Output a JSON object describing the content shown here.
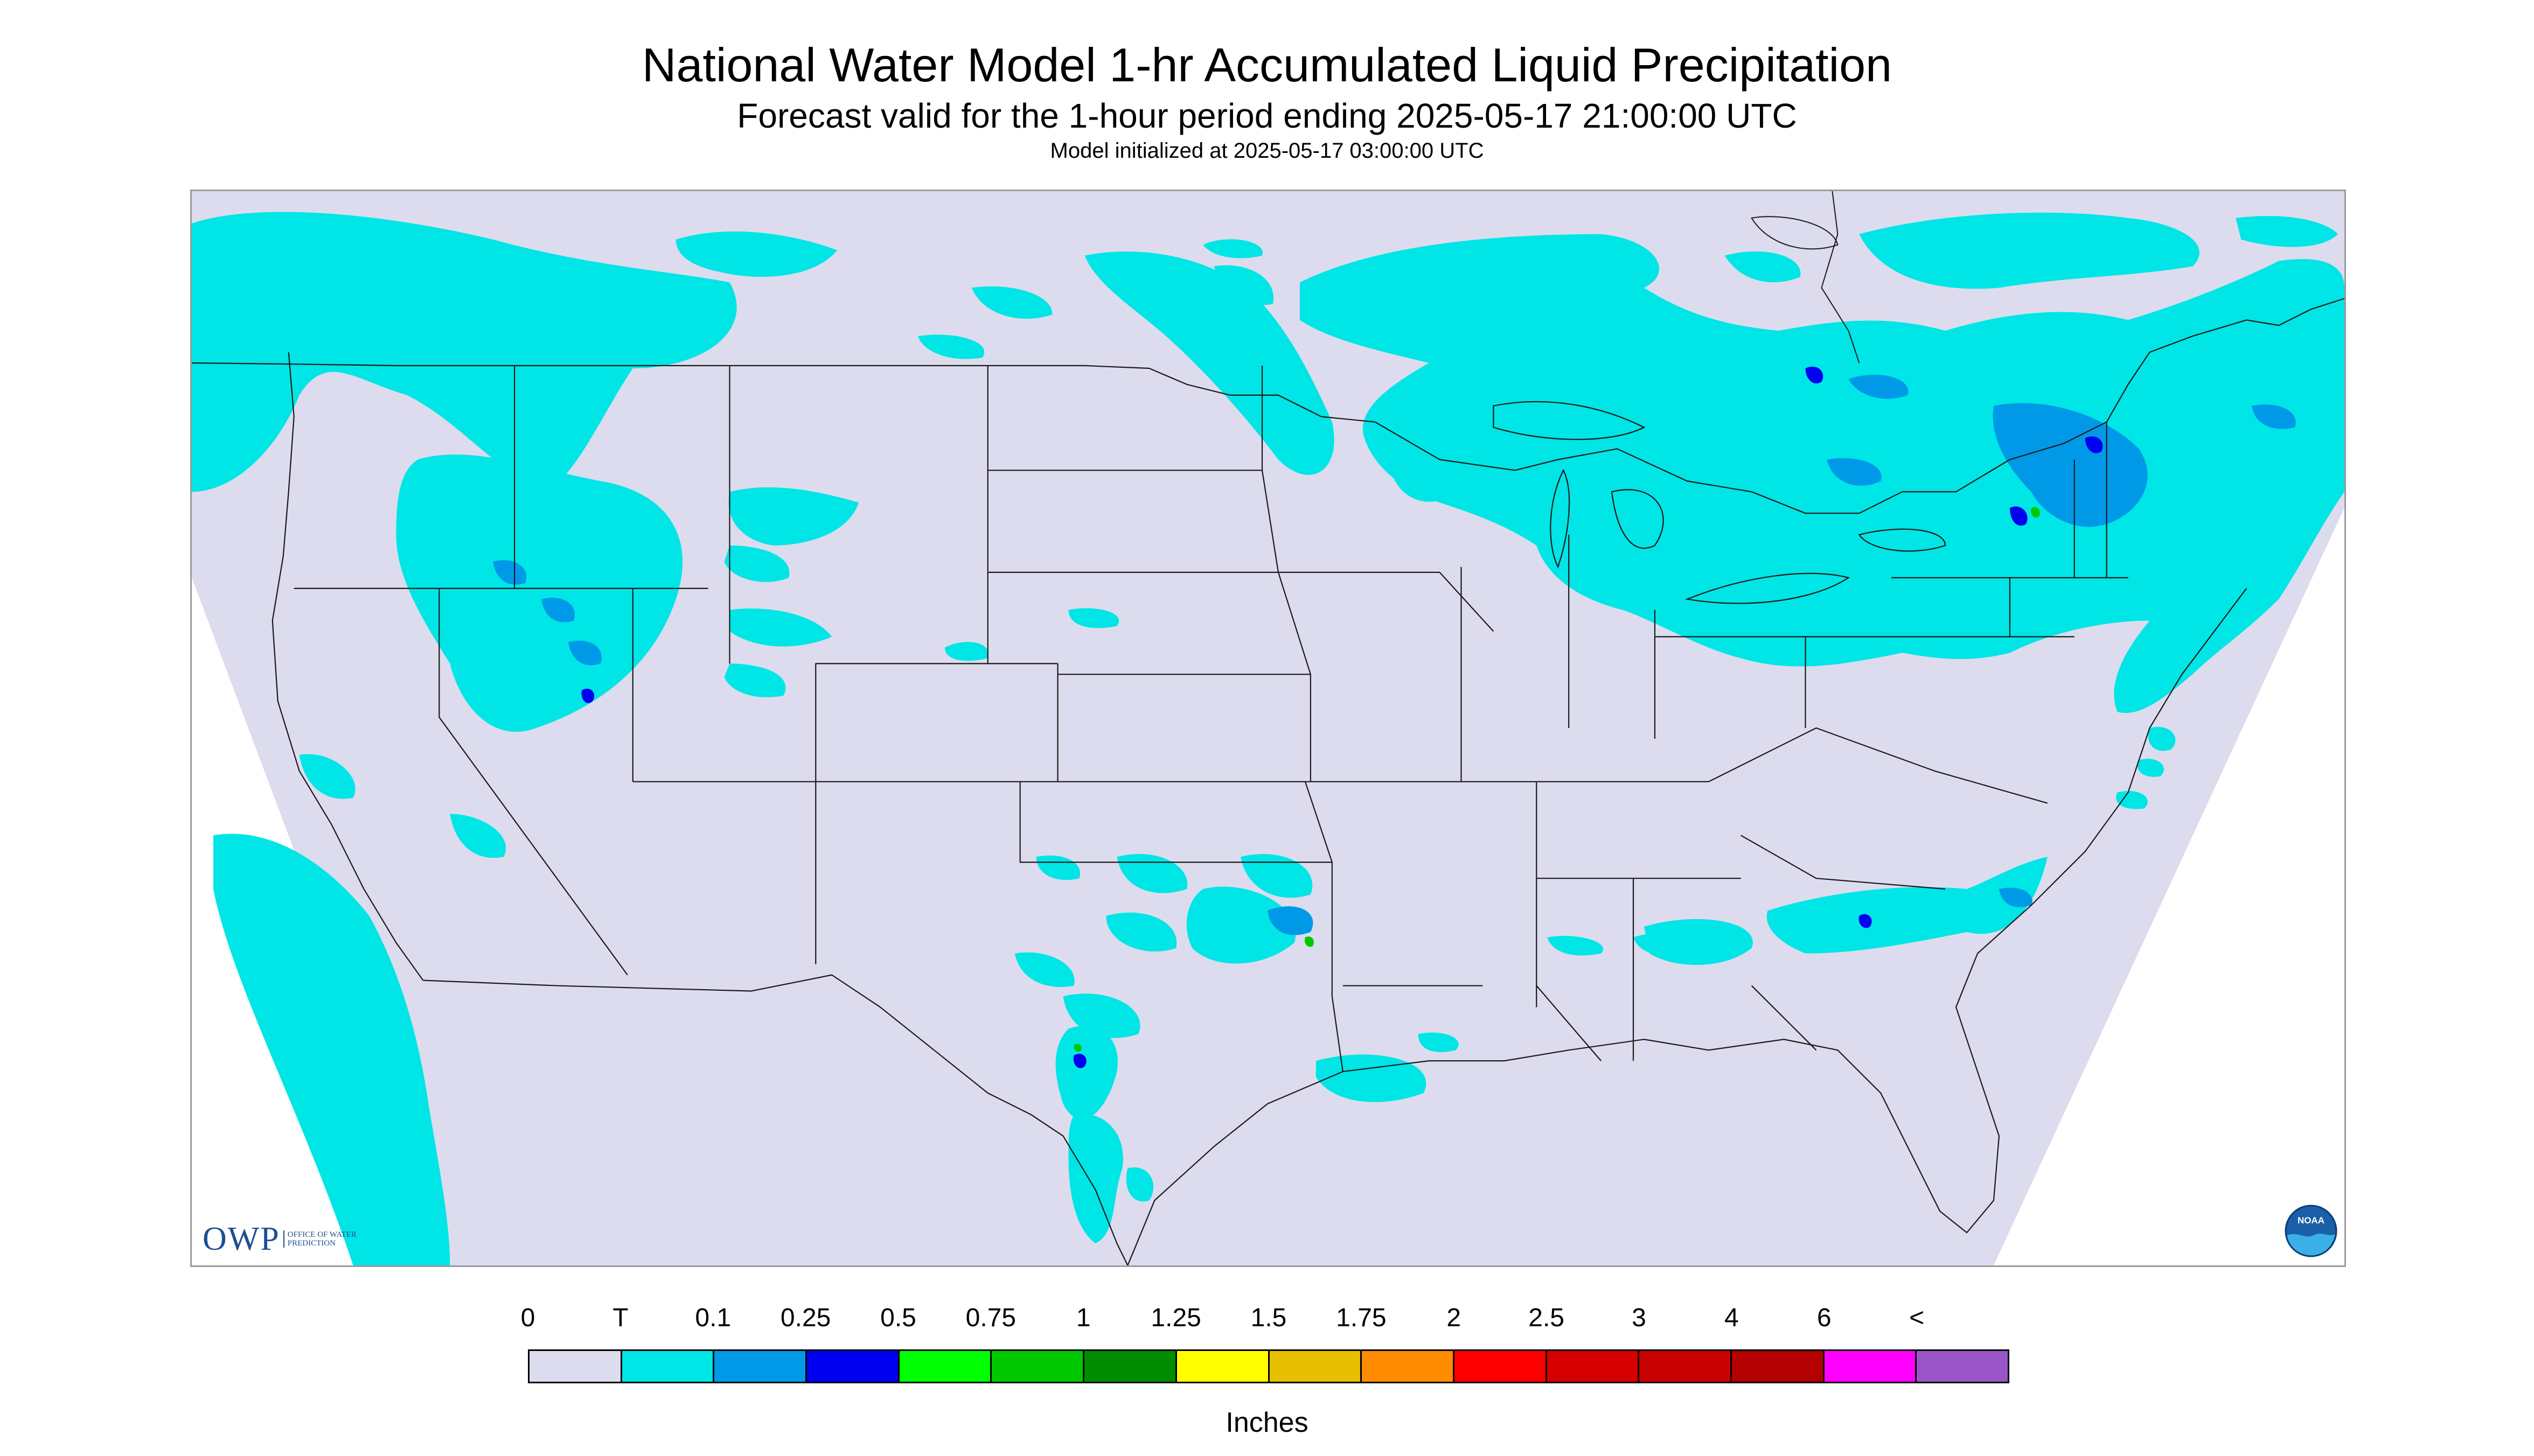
{
  "title": "National Water Model 1-hr Accumulated Liquid Precipitation",
  "subtitle": "Forecast valid for the 1-hour period ending 2025-05-17 21:00:00 UTC",
  "init_line": "Model initialized at 2025-05-17 03:00:00 UTC",
  "legend": {
    "labels": [
      "0",
      "T",
      "0.1",
      "0.25",
      "0.5",
      "0.75",
      "1",
      "1.25",
      "1.5",
      "1.75",
      "2",
      "2.5",
      "3",
      "4",
      "6",
      "<"
    ],
    "colors": [
      "#dcdcee",
      "#00e5e5",
      "#0099e8",
      "#0000f0",
      "#00ff00",
      "#00c800",
      "#008c00",
      "#ffff00",
      "#e5bf00",
      "#ff8c00",
      "#ff0000",
      "#d70000",
      "#c80000",
      "#b40000",
      "#ff00ff",
      "#9955c8"
    ],
    "units": "Inches"
  },
  "logos": {
    "owp_mark": "OWP",
    "owp_text": "Office of Water Prediction",
    "noaa_text": "NOAA"
  },
  "colors": {
    "background_outside": "#ffffff",
    "no_precip": "#dcdcee",
    "trace": "#00e5e5",
    "light": "#0099e8",
    "moderate": "#0000f0",
    "heavy": "#00c800",
    "boundary": "#000000"
  }
}
